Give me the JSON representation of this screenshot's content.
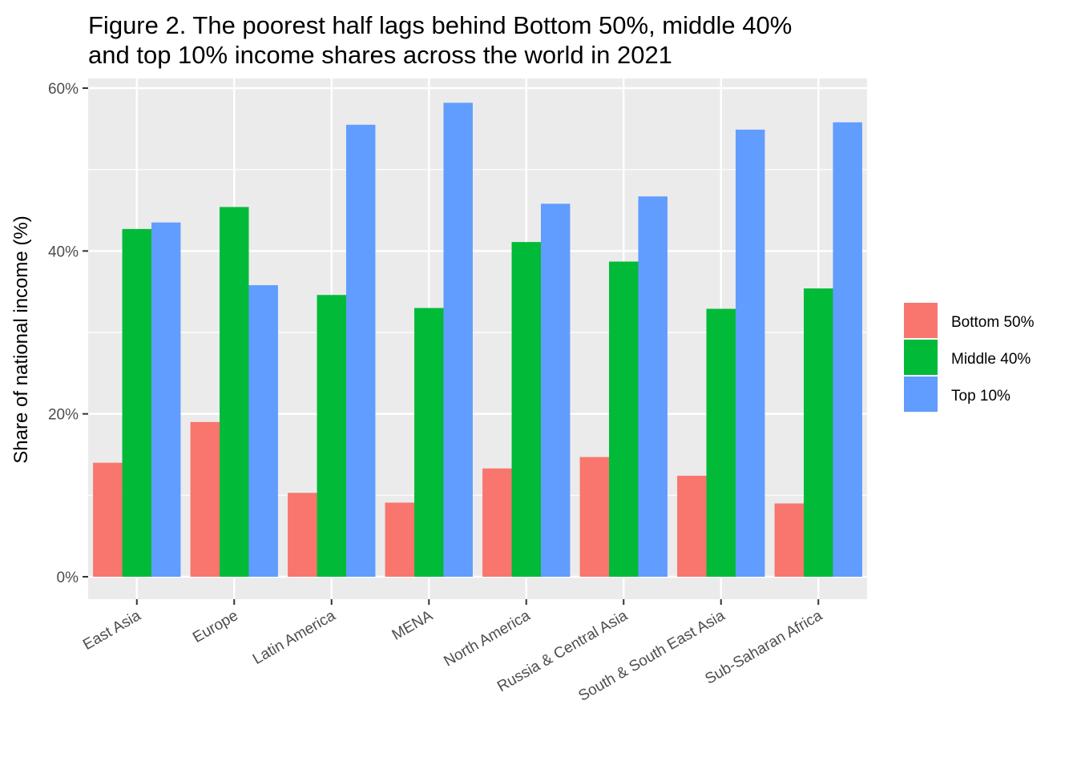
{
  "chart_data": {
    "type": "bar",
    "title": "Figure 2. The poorest half lags behind Bottom 50%, middle 40%",
    "subtitle": "and top 10% income shares across the world in 2021",
    "xlabel": "",
    "ylabel": "Share of national income (%)",
    "ylim": [
      0,
      60
    ],
    "yticks": [
      0,
      20,
      40,
      60
    ],
    "ytick_labels": [
      "0%",
      "20%",
      "40%",
      "60%"
    ],
    "grid": true,
    "legend_position": "right",
    "categories": [
      "East Asia",
      "Europe",
      "Latin America",
      "MENA",
      "North America",
      "Russia & Central Asia",
      "South & South East Asia",
      "Sub-Saharan Africa"
    ],
    "series": [
      {
        "name": "Bottom 50%",
        "color": "#F8766D",
        "values": [
          14.0,
          19.0,
          10.3,
          9.1,
          13.3,
          14.7,
          12.4,
          9.0
        ]
      },
      {
        "name": "Middle 40%",
        "color": "#00BA38",
        "values": [
          42.7,
          45.4,
          34.6,
          33.0,
          41.1,
          38.7,
          32.9,
          35.4
        ]
      },
      {
        "name": "Top 10%",
        "color": "#619CFF",
        "values": [
          43.5,
          35.8,
          55.5,
          58.2,
          45.8,
          46.7,
          54.9,
          55.8
        ]
      }
    ],
    "panel_background": "#EBEBEB",
    "grid_color": "#FFFFFF"
  }
}
